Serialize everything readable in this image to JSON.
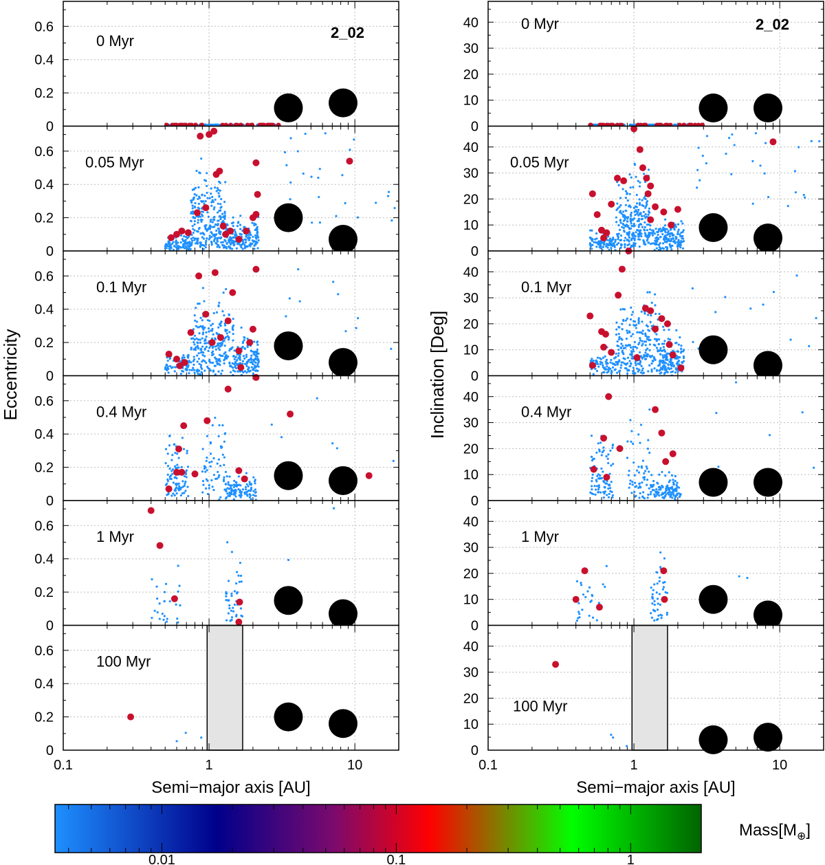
{
  "figure": {
    "run_label": "2_02",
    "xlabel": "Semi−major axis [AU]",
    "colorbar_label": "Mass[M",
    "colorbar_label_symbol": "⊕",
    "colorbar_label_close": "]"
  },
  "chart_data": [
    {
      "type": "scatter",
      "title": "Eccentricity vs semi-major axis",
      "ylabel": "Eccentricity",
      "xlabel": "Semi−major axis [AU]",
      "xscale": "log",
      "xlim": [
        0.1,
        20
      ],
      "ylim": [
        0,
        0.75
      ],
      "yticks": [
        "0",
        "0.2",
        "0.4",
        "0.6"
      ],
      "xticks": [
        "0.1",
        "1",
        "10"
      ],
      "grid": true,
      "panels": [
        {
          "time": "0 Myr",
          "show_run_label": true,
          "giants": [
            {
              "a": 3.5,
              "e": 0.11
            },
            {
              "a": 8.3,
              "e": 0.14
            }
          ],
          "embryos": [],
          "shaded_band": null
        },
        {
          "time": "0.05 Myr",
          "giants": [
            {
              "a": 3.5,
              "e": 0.2
            },
            {
              "a": 8.3,
              "e": 0.07
            }
          ],
          "embryos": [
            {
              "a": 0.83,
              "e": 0.23
            },
            {
              "a": 0.87,
              "e": 0.69
            },
            {
              "a": 1.0,
              "e": 0.7
            },
            {
              "a": 1.08,
              "e": 0.72
            },
            {
              "a": 1.12,
              "e": 0.46
            },
            {
              "a": 1.18,
              "e": 0.48
            },
            {
              "a": 1.25,
              "e": 0.15
            },
            {
              "a": 1.3,
              "e": 0.1
            },
            {
              "a": 1.4,
              "e": 0.12
            },
            {
              "a": 1.6,
              "e": 0.07
            },
            {
              "a": 1.8,
              "e": 0.12
            },
            {
              "a": 2.0,
              "e": 0.2
            },
            {
              "a": 2.1,
              "e": 0.53
            },
            {
              "a": 2.15,
              "e": 0.34
            },
            {
              "a": 2.1,
              "e": 0.22
            },
            {
              "a": 0.6,
              "e": 0.1
            },
            {
              "a": 0.55,
              "e": 0.08
            },
            {
              "a": 0.72,
              "e": 0.11
            },
            {
              "a": 9.2,
              "e": 0.54
            },
            {
              "a": 0.65,
              "e": 0.12
            },
            {
              "a": 0.95,
              "e": 0.26
            }
          ],
          "shaded_band": null
        },
        {
          "time": "0.1 Myr",
          "giants": [
            {
              "a": 3.5,
              "e": 0.18
            },
            {
              "a": 8.3,
              "e": 0.08
            }
          ],
          "embryos": [
            {
              "a": 0.53,
              "e": 0.13
            },
            {
              "a": 0.6,
              "e": 0.1
            },
            {
              "a": 0.63,
              "e": 0.06
            },
            {
              "a": 0.68,
              "e": 0.08
            },
            {
              "a": 0.75,
              "e": 0.26
            },
            {
              "a": 0.85,
              "e": 0.6
            },
            {
              "a": 0.95,
              "e": 0.37
            },
            {
              "a": 1.05,
              "e": 0.2
            },
            {
              "a": 1.1,
              "e": 0.62
            },
            {
              "a": 1.2,
              "e": 0.23
            },
            {
              "a": 1.35,
              "e": 0.33
            },
            {
              "a": 1.45,
              "e": 0.5
            },
            {
              "a": 1.6,
              "e": 0.15
            },
            {
              "a": 1.9,
              "e": 0.2
            },
            {
              "a": 2.0,
              "e": 0.28
            },
            {
              "a": 2.1,
              "e": 0.64
            },
            {
              "a": 1.65,
              "e": 0.05
            }
          ],
          "shaded_band": null
        },
        {
          "time": "0.4 Myr",
          "giants": [
            {
              "a": 3.5,
              "e": 0.15
            },
            {
              "a": 8.3,
              "e": 0.12
            }
          ],
          "embryos": [
            {
              "a": 0.53,
              "e": 0.07
            },
            {
              "a": 0.6,
              "e": 0.17
            },
            {
              "a": 0.62,
              "e": 0.31
            },
            {
              "a": 0.67,
              "e": 0.45
            },
            {
              "a": 0.65,
              "e": 0.17
            },
            {
              "a": 0.8,
              "e": 0.16
            },
            {
              "a": 0.97,
              "e": 0.48
            },
            {
              "a": 1.35,
              "e": 0.67
            },
            {
              "a": 1.6,
              "e": 0.18
            },
            {
              "a": 1.75,
              "e": 0.13
            },
            {
              "a": 2.1,
              "e": 0.74
            },
            {
              "a": 3.6,
              "e": 0.52
            },
            {
              "a": 12.5,
              "e": 0.15
            }
          ],
          "shaded_band": null
        },
        {
          "time": "1 Myr",
          "giants": [
            {
              "a": 3.5,
              "e": 0.15
            },
            {
              "a": 8.3,
              "e": 0.07
            }
          ],
          "embryos": [
            {
              "a": 0.4,
              "e": 0.69
            },
            {
              "a": 0.46,
              "e": 0.48
            },
            {
              "a": 0.58,
              "e": 0.16
            },
            {
              "a": 1.62,
              "e": 0.14
            },
            {
              "a": 1.6,
              "e": 0.02
            }
          ],
          "shaded_band": null
        },
        {
          "time": "100 Myr",
          "giants": [
            {
              "a": 3.5,
              "e": 0.2
            },
            {
              "a": 8.3,
              "e": 0.16
            }
          ],
          "embryos": [
            {
              "a": 0.29,
              "e": 0.2
            }
          ],
          "shaded_band": [
            0.97,
            1.7
          ]
        }
      ]
    },
    {
      "type": "scatter",
      "title": "Inclination vs semi-major axis",
      "ylabel": "Inclination [Deg]",
      "xlabel": "Semi−major axis [AU]",
      "xscale": "log",
      "xlim": [
        0.1,
        20
      ],
      "ylim": [
        0,
        48
      ],
      "yticks": [
        "0",
        "10",
        "20",
        "30",
        "40"
      ],
      "xticks": [
        "0.1",
        "1",
        "10"
      ],
      "grid": true,
      "panels": [
        {
          "time": "0 Myr",
          "show_run_label": true,
          "giants": [
            {
              "a": 3.5,
              "i": 7
            },
            {
              "a": 8.3,
              "i": 7
            }
          ],
          "embryos": [],
          "shaded_band": null
        },
        {
          "time": "0.05 Myr",
          "giants": [
            {
              "a": 3.5,
              "i": 9
            },
            {
              "a": 8.3,
              "i": 5
            }
          ],
          "embryos": [
            {
              "a": 0.52,
              "i": 22
            },
            {
              "a": 0.56,
              "i": 14
            },
            {
              "a": 0.6,
              "i": 8
            },
            {
              "a": 0.62,
              "i": 5
            },
            {
              "a": 0.65,
              "i": 7
            },
            {
              "a": 0.7,
              "i": 18
            },
            {
              "a": 0.77,
              "i": 28
            },
            {
              "a": 0.85,
              "i": 27
            },
            {
              "a": 1.0,
              "i": 47
            },
            {
              "a": 1.1,
              "i": 39
            },
            {
              "a": 1.15,
              "i": 32
            },
            {
              "a": 1.22,
              "i": 28
            },
            {
              "a": 1.3,
              "i": 25
            },
            {
              "a": 1.25,
              "i": 22
            },
            {
              "a": 1.4,
              "i": 17
            },
            {
              "a": 1.3,
              "i": 12
            },
            {
              "a": 1.6,
              "i": 15
            },
            {
              "a": 1.8,
              "i": 10
            },
            {
              "a": 2.0,
              "i": 16
            },
            {
              "a": 9.0,
              "i": 42
            }
          ],
          "shaded_band": null
        },
        {
          "time": "0.1 Myr",
          "giants": [
            {
              "a": 3.5,
              "i": 10
            },
            {
              "a": 8.3,
              "i": 4
            }
          ],
          "embryos": [
            {
              "a": 0.5,
              "i": 23
            },
            {
              "a": 0.52,
              "i": 4
            },
            {
              "a": 0.6,
              "i": 17
            },
            {
              "a": 0.62,
              "i": 11
            },
            {
              "a": 0.64,
              "i": 16
            },
            {
              "a": 0.7,
              "i": 9
            },
            {
              "a": 0.78,
              "i": 31
            },
            {
              "a": 0.83,
              "i": 41
            },
            {
              "a": 0.92,
              "i": 48
            },
            {
              "a": 1.05,
              "i": 7
            },
            {
              "a": 1.2,
              "i": 26
            },
            {
              "a": 1.3,
              "i": 25
            },
            {
              "a": 1.4,
              "i": 18
            },
            {
              "a": 1.55,
              "i": 22
            },
            {
              "a": 1.7,
              "i": 20
            },
            {
              "a": 1.75,
              "i": 12
            },
            {
              "a": 1.85,
              "i": 8
            },
            {
              "a": 2.1,
              "i": 3
            }
          ],
          "shaded_band": null
        },
        {
          "time": "0.4 Myr",
          "giants": [
            {
              "a": 3.5,
              "i": 7
            },
            {
              "a": 8.3,
              "i": 7
            }
          ],
          "embryos": [
            {
              "a": 0.53,
              "i": 12
            },
            {
              "a": 0.62,
              "i": 24
            },
            {
              "a": 0.65,
              "i": 9
            },
            {
              "a": 0.67,
              "i": 40
            },
            {
              "a": 0.8,
              "i": 20
            },
            {
              "a": 1.4,
              "i": 35
            },
            {
              "a": 1.55,
              "i": 26
            },
            {
              "a": 1.65,
              "i": 15
            },
            {
              "a": 1.85,
              "i": 18
            }
          ],
          "shaded_band": null
        },
        {
          "time": "1 Myr",
          "giants": [
            {
              "a": 3.5,
              "i": 10
            },
            {
              "a": 8.3,
              "i": 4
            }
          ],
          "embryos": [
            {
              "a": 0.4,
              "i": 10
            },
            {
              "a": 0.46,
              "i": 21
            },
            {
              "a": 0.58,
              "i": 7
            },
            {
              "a": 1.6,
              "i": 21
            },
            {
              "a": 1.62,
              "i": 10
            }
          ],
          "shaded_band": null
        },
        {
          "time": "100 Myr",
          "giants": [
            {
              "a": 3.5,
              "i": 4
            },
            {
              "a": 8.3,
              "i": 5
            }
          ],
          "embryos": [
            {
              "a": 0.29,
              "i": 33
            }
          ],
          "shaded_band": [
            0.97,
            1.7
          ]
        }
      ]
    }
  ],
  "colorbar": {
    "type": "colorbar",
    "label": "Mass[M⊕]",
    "scale": "log",
    "range": [
      0.0035,
      2.0
    ],
    "tick_labels": [
      "0.01",
      "0.1",
      "1"
    ],
    "tick_values": [
      0.01,
      0.1,
      1
    ],
    "colors": [
      "#1e90ff",
      "#00008b",
      "#8b008b",
      "#ff0000",
      "#00ff00",
      "#006400"
    ]
  }
}
